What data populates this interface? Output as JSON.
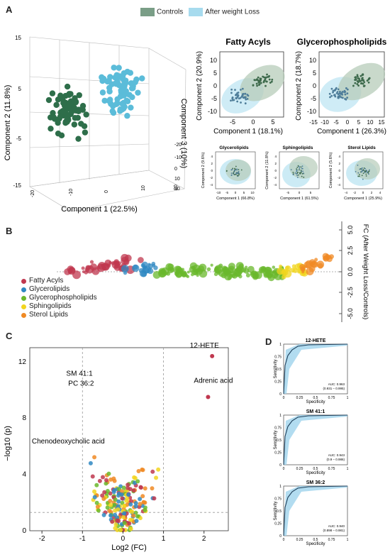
{
  "panels": {
    "a": "A",
    "b": "B",
    "c": "C",
    "d": "D"
  },
  "legend_top": [
    {
      "label": "Controls",
      "color": "#7a9e87"
    },
    {
      "label": "After weight Loss",
      "color": "#a7dbee"
    }
  ],
  "colors": {
    "control_dark": "#2e6e4a",
    "after_light": "#5bbcd9",
    "fatty": "#c0384f",
    "glycerolipids": "#2f88c2",
    "glycerophospho": "#6ab82c",
    "sphingo": "#f2d51f",
    "sterol": "#f08a24"
  },
  "panel_a": {
    "pca3d": {
      "ylabel": "Component 2 (11.8%)",
      "xlabel": "Component 1 (22.5%)",
      "zlabel": "Component 3 (10%)",
      "yticks": [
        "15",
        "5",
        "-5",
        "-15"
      ],
      "xticks": [
        "-20",
        "-10",
        "0",
        "10",
        "20"
      ],
      "zticks": [
        "-20",
        "-10",
        "0",
        "10",
        "20"
      ]
    },
    "fatty": {
      "title": "Fatty Acyls",
      "xlabel": "Component 1 (18.1%)",
      "ylabel": "Component 2 (20.9%)",
      "xticks": [
        "-5",
        "0",
        "5"
      ],
      "yticks": [
        "10",
        "5",
        "0",
        "-5",
        "-10"
      ]
    },
    "glycero": {
      "title": "Glycerophospholipids",
      "xlabel": "Component 1 (26.3%)",
      "ylabel": "Component 2 (18.7%)",
      "xticks": [
        "-15",
        "-10",
        "-5",
        "0",
        "5",
        "10",
        "15"
      ],
      "yticks": [
        "10",
        "5",
        "0",
        "-5",
        "-10"
      ]
    },
    "small": [
      {
        "title": "Glycerolipids",
        "xlabel": "Component 1 (66.8%)",
        "ylabel": "Component 2 (9.6%)",
        "xticks": [
          "-10",
          "-5",
          "0",
          "5",
          "10"
        ],
        "yticks": [
          "4",
          "2",
          "0",
          "-2",
          "-4"
        ]
      },
      {
        "title": "Sphingolipids",
        "xlabel": "Component 1 (61.5%)",
        "ylabel": "Component 2 (11.8%)",
        "xticks": [
          "-5",
          "0",
          "5"
        ],
        "yticks": [
          "4",
          "2",
          "0",
          "-2",
          "-4"
        ]
      },
      {
        "title": "Sterol Lipids",
        "xlabel": "Component 1 (25.9%)",
        "ylabel": "Component 2 (5.6%)",
        "xticks": [
          "-4",
          "-2",
          "0",
          "2",
          "4"
        ],
        "yticks": [
          "4",
          "2",
          "0",
          "-2",
          "-4"
        ]
      }
    ]
  },
  "panel_b": {
    "ylabel": "FC (After Weight Loss/Controls)",
    "yticks": [
      "5.0",
      "2.5",
      "0.0",
      "-2.5",
      "-5.0"
    ],
    "legend": [
      {
        "label": "Fatty Acyls",
        "color": "#c0384f"
      },
      {
        "label": "Glycerolipids",
        "color": "#2f88c2"
      },
      {
        "label": "Glycerophospholipids",
        "color": "#6ab82c"
      },
      {
        "label": "Sphingolipids",
        "color": "#f2d51f"
      },
      {
        "label": "Sterol Lipids",
        "color": "#f08a24"
      }
    ]
  },
  "chart_data": [
    {
      "type": "scatter",
      "xlabel": "Log2 (FC)",
      "ylabel": "−log10 (p)",
      "xlim": [
        -2.3,
        2.6
      ],
      "ylim": [
        0,
        13
      ],
      "xticks": [
        "-2",
        "-1",
        "0",
        "1",
        "2"
      ],
      "yticks": [
        "0",
        "4",
        "8",
        "12"
      ],
      "annotations": [
        {
          "label": "12-HETE",
          "x": 2.2,
          "y": 12.4
        },
        {
          "label": "Adrenic acid",
          "x": 2.1,
          "y": 9.5
        },
        {
          "label": "SM 41:1",
          "x": -0.8,
          "y": 11.3
        },
        {
          "label": "PC 36:2",
          "x": -0.75,
          "y": 11.8
        },
        {
          "label": "Chenodeoxycholic acid",
          "x": -2.15,
          "y": 6.7
        }
      ]
    },
    {
      "type": "line",
      "title": "12-HETE",
      "xlabel": "Specificity",
      "ylabel": "Sensitivity",
      "xticks": [
        "0",
        "0.25",
        "0.5",
        "0.75",
        "1"
      ],
      "yticks": [
        "0",
        "0.25",
        "0.5",
        "0.75",
        "1"
      ],
      "auc_label": "AUC: 0.963",
      "ci_label": "(0.931 – 0.995)"
    },
    {
      "type": "line",
      "title": "SM 41:1",
      "xlabel": "Specificity",
      "ylabel": "Sensitivity",
      "xticks": [
        "0",
        "0.25",
        "0.5",
        "0.75",
        "1"
      ],
      "yticks": [
        "0",
        "0.25",
        "0.5",
        "0.75",
        "1"
      ],
      "auc_label": "AUC: 0.943",
      "ci_label": "(0.9 – 0.986)"
    },
    {
      "type": "line",
      "title": "SM 36:2",
      "xlabel": "Specificity",
      "ylabel": "Sensitivity",
      "xticks": [
        "0",
        "0.25",
        "0.5",
        "0.75",
        "1"
      ],
      "yticks": [
        "0",
        "0.25",
        "0.5",
        "0.75",
        "1"
      ],
      "auc_label": "AUC: 0.940",
      "ci_label": "(0.898 – 0.981)"
    }
  ]
}
